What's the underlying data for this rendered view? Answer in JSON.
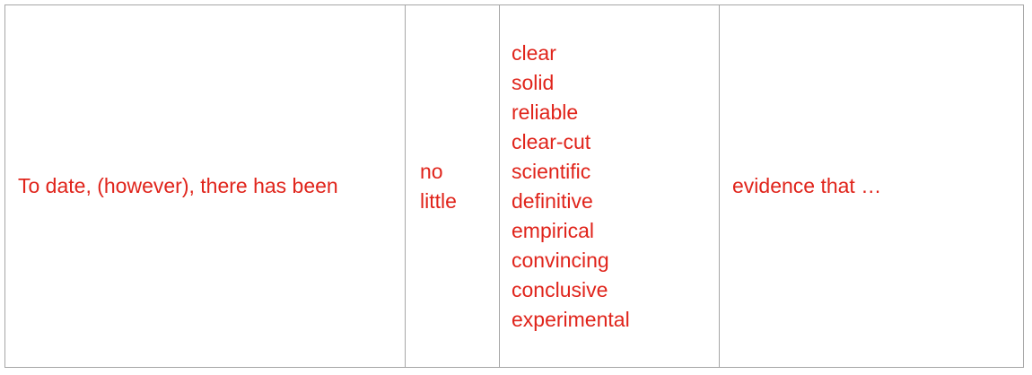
{
  "table": {
    "opening": "To date, (however), there has been",
    "quantifiers": [
      "no",
      "little"
    ],
    "adjectives": [
      "clear",
      "solid",
      "reliable",
      "clear-cut",
      "scientific",
      "definitive",
      "empirical",
      "convincing",
      "conclusive",
      "experimental"
    ],
    "closing": "evidence that …"
  },
  "colors": {
    "text": "#e0241b",
    "border": "#a6a6a6",
    "background": "#ffffff"
  }
}
